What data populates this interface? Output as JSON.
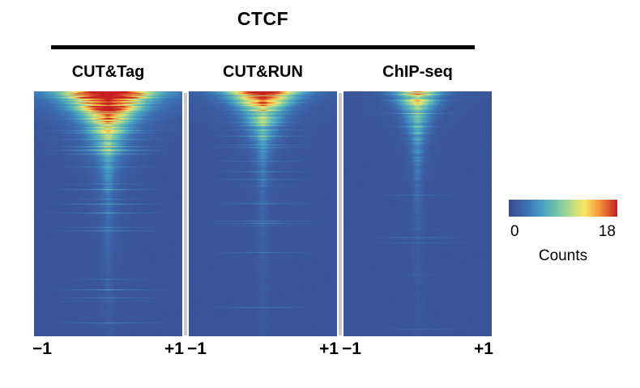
{
  "figure": {
    "title": "CTCF",
    "x_tick_left": "−1",
    "x_tick_right": "+1",
    "colorbar_min": "0",
    "colorbar_max": "18",
    "colorbar_label": "Counts"
  },
  "chart_data": {
    "type": "heatmap",
    "title": "CTCF",
    "description": "Three heatmaps of CTCF signal at binding sites, rows sorted by decreasing signal intensity, x-axis spanning −1 to +1 (kb) around site center, comparing CUT&Tag, CUT&RUN and ChIP-seq. Shared color scale 0–18 counts.",
    "x_range": [
      -1,
      1
    ],
    "x_tick_labels": [
      "−1",
      "+1"
    ],
    "background_counts": 0.8,
    "color_scale": {
      "min": 0,
      "max": 18,
      "label": "Counts",
      "stops": [
        [
          0.0,
          [
            58,
            74,
            144
          ]
        ],
        [
          0.14,
          [
            60,
            106,
            176
          ]
        ],
        [
          0.3,
          [
            70,
            158,
            196
          ]
        ],
        [
          0.45,
          [
            116,
            198,
            169
          ]
        ],
        [
          0.58,
          [
            185,
            221,
            136
          ]
        ],
        [
          0.7,
          [
            248,
            230,
            100
          ]
        ],
        [
          0.84,
          [
            244,
            148,
            58
          ]
        ],
        [
          1.0,
          [
            196,
            32,
            33
          ]
        ]
      ]
    },
    "panels": [
      {
        "name": "CUT&Tag",
        "peak_counts": 18,
        "amp_decay": 0.12,
        "width_top": 0.5,
        "width_floor": 0.055,
        "width_decay": 0.17,
        "haze": 0.18,
        "tail": 2.2,
        "streak_prob": 0.12,
        "streak_amp": 2.6,
        "seed": 11
      },
      {
        "name": "CUT&RUN",
        "peak_counts": 12,
        "amp_decay": 0.11,
        "width_top": 0.4,
        "width_floor": 0.05,
        "width_decay": 0.15,
        "haze": 0.14,
        "tail": 1.8,
        "streak_prob": 0.09,
        "streak_amp": 2.0,
        "seed": 22
      },
      {
        "name": "ChIP-seq",
        "peak_counts": 7,
        "amp_decay": 0.16,
        "width_top": 0.26,
        "width_floor": 0.045,
        "width_decay": 0.18,
        "haze": 0.1,
        "tail": 1.6,
        "streak_prob": 0.06,
        "streak_amp": 1.3,
        "seed": 33
      }
    ]
  }
}
